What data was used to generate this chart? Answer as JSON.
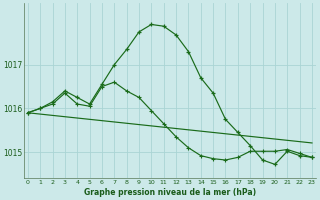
{
  "hours": [
    0,
    1,
    2,
    3,
    4,
    5,
    6,
    7,
    8,
    9,
    10,
    11,
    12,
    13,
    14,
    15,
    16,
    17,
    18,
    19,
    20,
    21,
    22,
    23
  ],
  "pressure_main": [
    1015.9,
    1016.0,
    1016.15,
    1016.4,
    1016.25,
    1016.1,
    1016.55,
    1017.0,
    1017.35,
    1017.75,
    1017.92,
    1017.88,
    1017.68,
    1017.3,
    1016.7,
    1016.35,
    1015.75,
    1015.45,
    1015.15,
    1014.82,
    1014.72,
    1015.02,
    1014.92,
    1014.88
  ],
  "pressure_low": [
    1015.9,
    1015.87,
    1015.84,
    1015.81,
    1015.78,
    1015.75,
    1015.72,
    1015.69,
    1015.66,
    1015.63,
    1015.6,
    1015.57,
    1015.54,
    1015.51,
    1015.48,
    1015.45,
    1015.42,
    1015.39,
    1015.36,
    1015.33,
    1015.3,
    1015.27,
    1015.24,
    1015.21
  ],
  "pressure_high": [
    1015.9,
    1016.0,
    1016.1,
    1016.35,
    1016.1,
    1016.05,
    1016.5,
    1016.6,
    1016.4,
    1016.25,
    1015.95,
    1015.65,
    1015.35,
    1015.1,
    1014.92,
    1014.85,
    1014.82,
    1014.88,
    1015.02,
    1015.02,
    1015.02,
    1015.06,
    1014.97,
    1014.88
  ],
  "ylim": [
    1014.4,
    1018.4
  ],
  "yticks": [
    1015,
    1016,
    1017
  ],
  "xlim": [
    -0.3,
    23.3
  ],
  "bg_color": "#cce9e9",
  "grid_color": "#aad4d4",
  "line_color": "#1a6b1a",
  "title": "Graphe pression niveau de la mer (hPa)",
  "title_color": "#1a5c1a",
  "figsize": [
    3.2,
    2.0
  ],
  "dpi": 100
}
